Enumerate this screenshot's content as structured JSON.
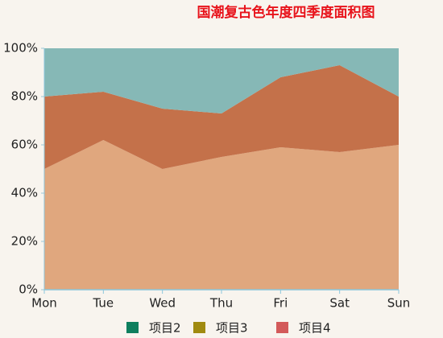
{
  "chart_data": {
    "type": "stacked_area",
    "title": "国潮复古色年度四季度面积图",
    "categories": [
      "Mon",
      "Tue",
      "Wed",
      "Thu",
      "Fri",
      "Sat",
      "Sun"
    ],
    "series": [
      {
        "name": "项目2",
        "color": "#0e7f5e",
        "fill": "#e0a77e",
        "values": [
          50,
          62,
          50,
          55,
          59,
          57,
          60
        ]
      },
      {
        "name": "项目3",
        "color": "#a08a10",
        "fill": "#c4714a",
        "values": [
          30,
          20,
          25,
          18,
          29,
          36,
          20
        ]
      },
      {
        "name": "项目4",
        "color": "#d35a5a",
        "fill": "#86b8b6",
        "values": [
          20,
          18,
          25,
          27,
          12,
          7,
          20
        ]
      }
    ],
    "ylim": [
      0,
      100
    ],
    "yticks": [
      {
        "value": 0,
        "label": "0%"
      },
      {
        "value": 20,
        "label": "20%"
      },
      {
        "value": 40,
        "label": "40%"
      },
      {
        "value": 60,
        "label": "60%"
      },
      {
        "value": 80,
        "label": "80%"
      },
      {
        "value": 100,
        "label": "100%"
      }
    ],
    "legend": "bottom"
  }
}
